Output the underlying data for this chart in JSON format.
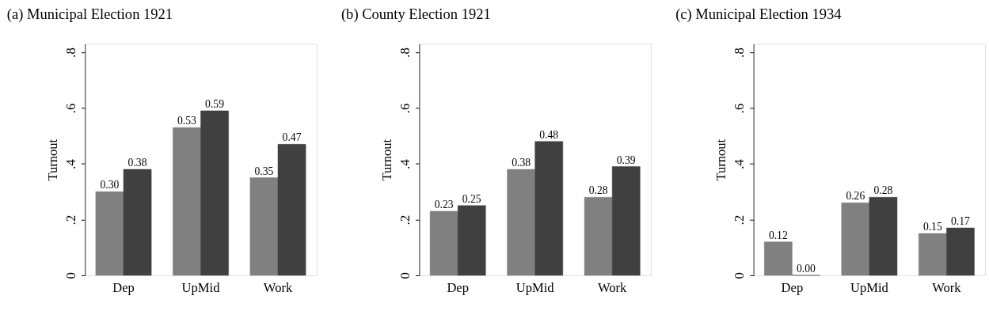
{
  "chart_data": [
    {
      "type": "bar",
      "title": "(a) Municipal Election 1921",
      "ylabel": "Turnout",
      "categories": [
        "Dep",
        "UpMid",
        "Work"
      ],
      "ylim": [
        0,
        0.83
      ],
      "yticks": [
        {
          "value": 0,
          "label": "0"
        },
        {
          "value": 0.2,
          "label": ".2"
        },
        {
          "value": 0.4,
          "label": ".4"
        },
        {
          "value": 0.6,
          "label": ".6"
        },
        {
          "value": 0.8,
          "label": ".8"
        }
      ],
      "grid": false,
      "legend": false,
      "series": [
        {
          "color": "#808080",
          "values": [
            0.3,
            0.53,
            0.35
          ],
          "value_labels": [
            "0.30",
            "0.53",
            "0.35"
          ]
        },
        {
          "color": "#404040",
          "values": [
            0.38,
            0.59,
            0.47
          ],
          "value_labels": [
            "0.38",
            "0.59",
            "0.47"
          ]
        }
      ]
    },
    {
      "type": "bar",
      "title": "(b) County Election 1921",
      "ylabel": "Turnout",
      "categories": [
        "Dep",
        "UpMid",
        "Work"
      ],
      "ylim": [
        0,
        0.83
      ],
      "yticks": [
        {
          "value": 0,
          "label": "0"
        },
        {
          "value": 0.2,
          "label": ".2"
        },
        {
          "value": 0.4,
          "label": ".4"
        },
        {
          "value": 0.6,
          "label": ".6"
        },
        {
          "value": 0.8,
          "label": ".8"
        }
      ],
      "grid": false,
      "legend": false,
      "series": [
        {
          "color": "#808080",
          "values": [
            0.23,
            0.38,
            0.28
          ],
          "value_labels": [
            "0.23",
            "0.38",
            "0.28"
          ]
        },
        {
          "color": "#404040",
          "values": [
            0.25,
            0.48,
            0.39
          ],
          "value_labels": [
            "0.25",
            "0.48",
            "0.39"
          ]
        }
      ]
    },
    {
      "type": "bar",
      "title": "(c) Municipal Election 1934",
      "ylabel": "Turnout",
      "categories": [
        "Dep",
        "UpMid",
        "Work"
      ],
      "ylim": [
        0,
        0.83
      ],
      "yticks": [
        {
          "value": 0,
          "label": "0"
        },
        {
          "value": 0.2,
          "label": ".2"
        },
        {
          "value": 0.4,
          "label": ".4"
        },
        {
          "value": 0.6,
          "label": ".6"
        },
        {
          "value": 0.8,
          "label": ".8"
        }
      ],
      "grid": false,
      "legend": false,
      "series": [
        {
          "color": "#808080",
          "values": [
            0.12,
            0.26,
            0.15
          ],
          "value_labels": [
            "0.12",
            "0.26",
            "0.15"
          ]
        },
        {
          "color": "#404040",
          "values": [
            0.0,
            0.28,
            0.17
          ],
          "value_labels": [
            "0.00",
            "0.28",
            "0.17"
          ]
        }
      ]
    }
  ]
}
